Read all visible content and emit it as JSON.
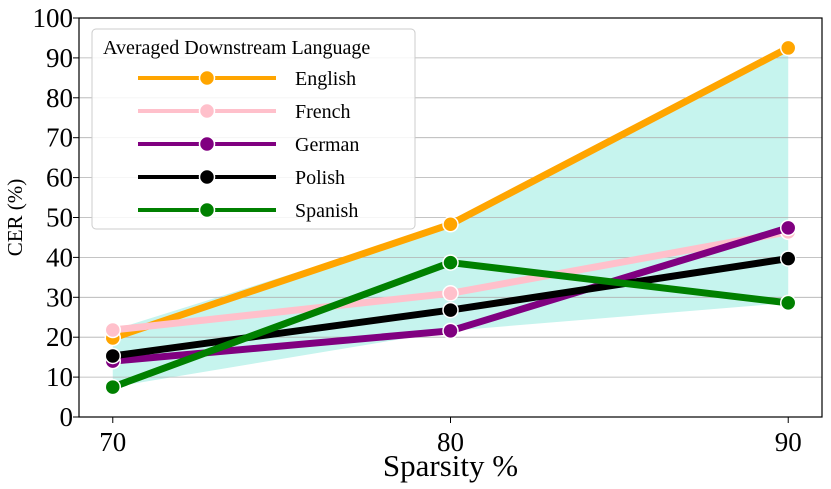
{
  "chart_data": {
    "type": "line",
    "title": "",
    "xlabel": "Sparsity %",
    "ylabel": "CER (%)",
    "x": [
      70,
      80,
      90
    ],
    "xlim": [
      69,
      91
    ],
    "ylim": [
      0,
      100
    ],
    "xticks": [
      70,
      80,
      90
    ],
    "yticks": [
      0,
      10,
      20,
      30,
      40,
      50,
      60,
      70,
      80,
      90,
      100
    ],
    "grid": "horizontal",
    "legend_title": "Averaged Downstream Language",
    "legend_position": "top-left",
    "band_color": "#c6f4ee",
    "series": [
      {
        "name": "English",
        "color": "#ffa500",
        "values": [
          19.8,
          48.3,
          92.5
        ]
      },
      {
        "name": "French",
        "color": "#ffc0cb",
        "values": [
          21.8,
          31.0,
          46.4
        ]
      },
      {
        "name": "German",
        "color": "#800080",
        "values": [
          14.0,
          21.6,
          47.4
        ]
      },
      {
        "name": "Polish",
        "color": "#000000",
        "values": [
          15.3,
          26.8,
          39.7
        ]
      },
      {
        "name": "Spanish",
        "color": "#008000",
        "values": [
          7.5,
          38.7,
          28.6
        ]
      }
    ]
  }
}
